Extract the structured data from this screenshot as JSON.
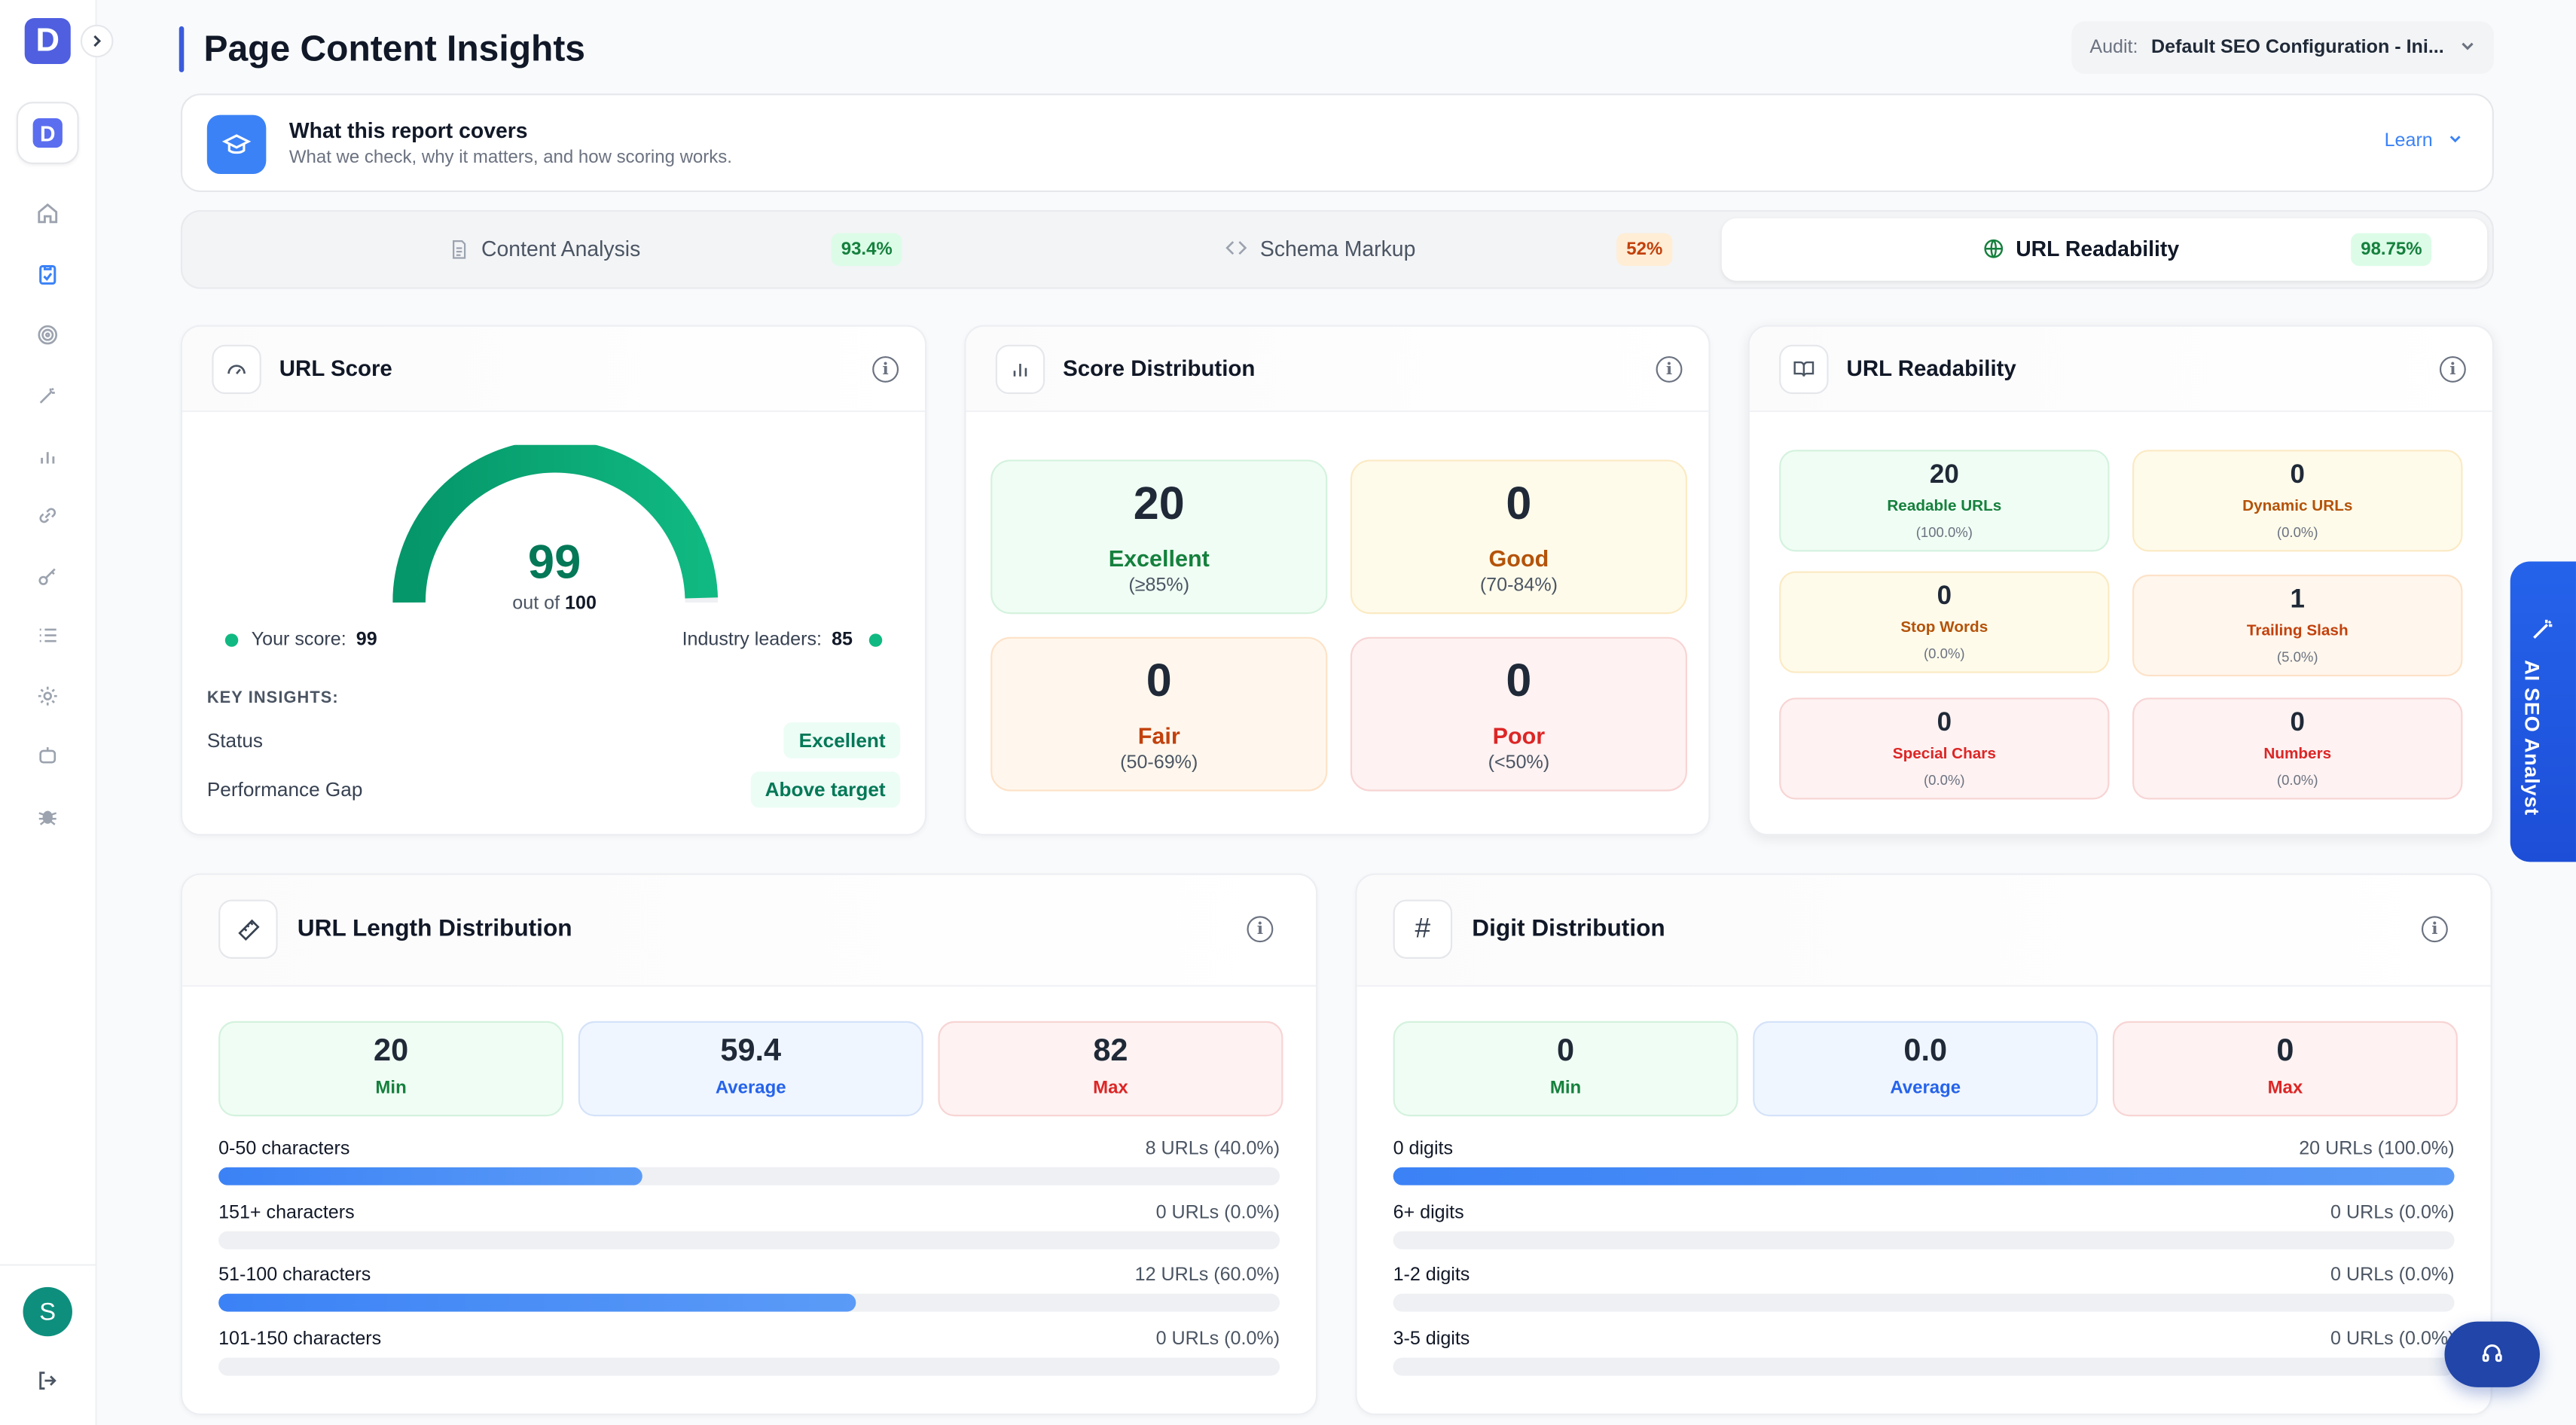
{
  "app": {
    "logo_letter": "D",
    "avatar_letter": "S"
  },
  "header": {
    "title": "Page Content Insights",
    "audit_label": "Audit:",
    "audit_value": "Default SEO Configuration - Ini..."
  },
  "banner": {
    "title": "What this report covers",
    "subtitle": "What we check, why it matters, and how scoring works.",
    "learn": "Learn"
  },
  "tabs": [
    {
      "label": "Content Analysis",
      "badge": "93.4%"
    },
    {
      "label": "Schema Markup",
      "badge": "52%"
    },
    {
      "label": "URL Readability",
      "badge": "98.75%"
    }
  ],
  "url_score": {
    "title": "URL Score",
    "score": "99",
    "score_value": 99,
    "out_of": "out of",
    "max": "100",
    "your_score_label": "Your score:",
    "your_score": "99",
    "industry_label": "Industry leaders:",
    "industry": "85",
    "insights_heading": "KEY INSIGHTS:",
    "status_label": "Status",
    "status_value": "Excellent",
    "gap_label": "Performance Gap",
    "gap_value": "Above target"
  },
  "score_distribution": {
    "title": "Score Distribution",
    "items": [
      {
        "count": "20",
        "label": "Excellent",
        "range": "(≥85%)"
      },
      {
        "count": "0",
        "label": "Good",
        "range": "(70-84%)"
      },
      {
        "count": "0",
        "label": "Fair",
        "range": "(50-69%)"
      },
      {
        "count": "0",
        "label": "Poor",
        "range": "(<50%)"
      }
    ]
  },
  "url_readability": {
    "title": "URL Readability",
    "items": [
      {
        "count": "20",
        "label": "Readable URLs",
        "pct": "(100.0%)"
      },
      {
        "count": "0",
        "label": "Dynamic URLs",
        "pct": "(0.0%)"
      },
      {
        "count": "0",
        "label": "Stop Words",
        "pct": "(0.0%)"
      },
      {
        "count": "1",
        "label": "Trailing Slash",
        "pct": "(5.0%)"
      },
      {
        "count": "0",
        "label": "Special Chars",
        "pct": "(0.0%)"
      },
      {
        "count": "0",
        "label": "Numbers",
        "pct": "(0.0%)"
      }
    ]
  },
  "url_length": {
    "title": "URL Length Distribution",
    "min": "20",
    "min_label": "Min",
    "avg": "59.4",
    "avg_label": "Average",
    "max": "82",
    "max_label": "Max",
    "bars": [
      {
        "label": "0-50 characters",
        "value": "8 URLs (40.0%)",
        "pct": 40
      },
      {
        "label": "151+ characters",
        "value": "0 URLs (0.0%)",
        "pct": 0
      },
      {
        "label": "51-100 characters",
        "value": "12 URLs (60.0%)",
        "pct": 60
      },
      {
        "label": "101-150 characters",
        "value": "0 URLs (0.0%)",
        "pct": 0
      }
    ]
  },
  "digit_distribution": {
    "title": "Digit Distribution",
    "min": "0",
    "min_label": "Min",
    "avg": "0.0",
    "avg_label": "Average",
    "max": "0",
    "max_label": "Max",
    "bars": [
      {
        "label": "0 digits",
        "value": "20 URLs (100.0%)",
        "pct": 100
      },
      {
        "label": "6+ digits",
        "value": "0 URLs (0.0%)",
        "pct": 0
      },
      {
        "label": "1-2 digits",
        "value": "0 URLs (0.0%)",
        "pct": 0
      },
      {
        "label": "3-5 digits",
        "value": "0 URLs (0.0%)",
        "pct": 0
      }
    ]
  },
  "ai_panel": {
    "label": "AI SEO Analyst"
  },
  "icons": {
    "nav": [
      "home-icon",
      "clipboard-check-icon",
      "target-icon",
      "magic-wand-icon",
      "bar-chart-icon",
      "link-icon",
      "key-icon",
      "list-icon",
      "gear-icon",
      "robot-icon",
      "bug-icon"
    ]
  },
  "colors": {
    "accent": "#3b82f6",
    "success": "#047857",
    "brand": "#4f5fe0"
  }
}
